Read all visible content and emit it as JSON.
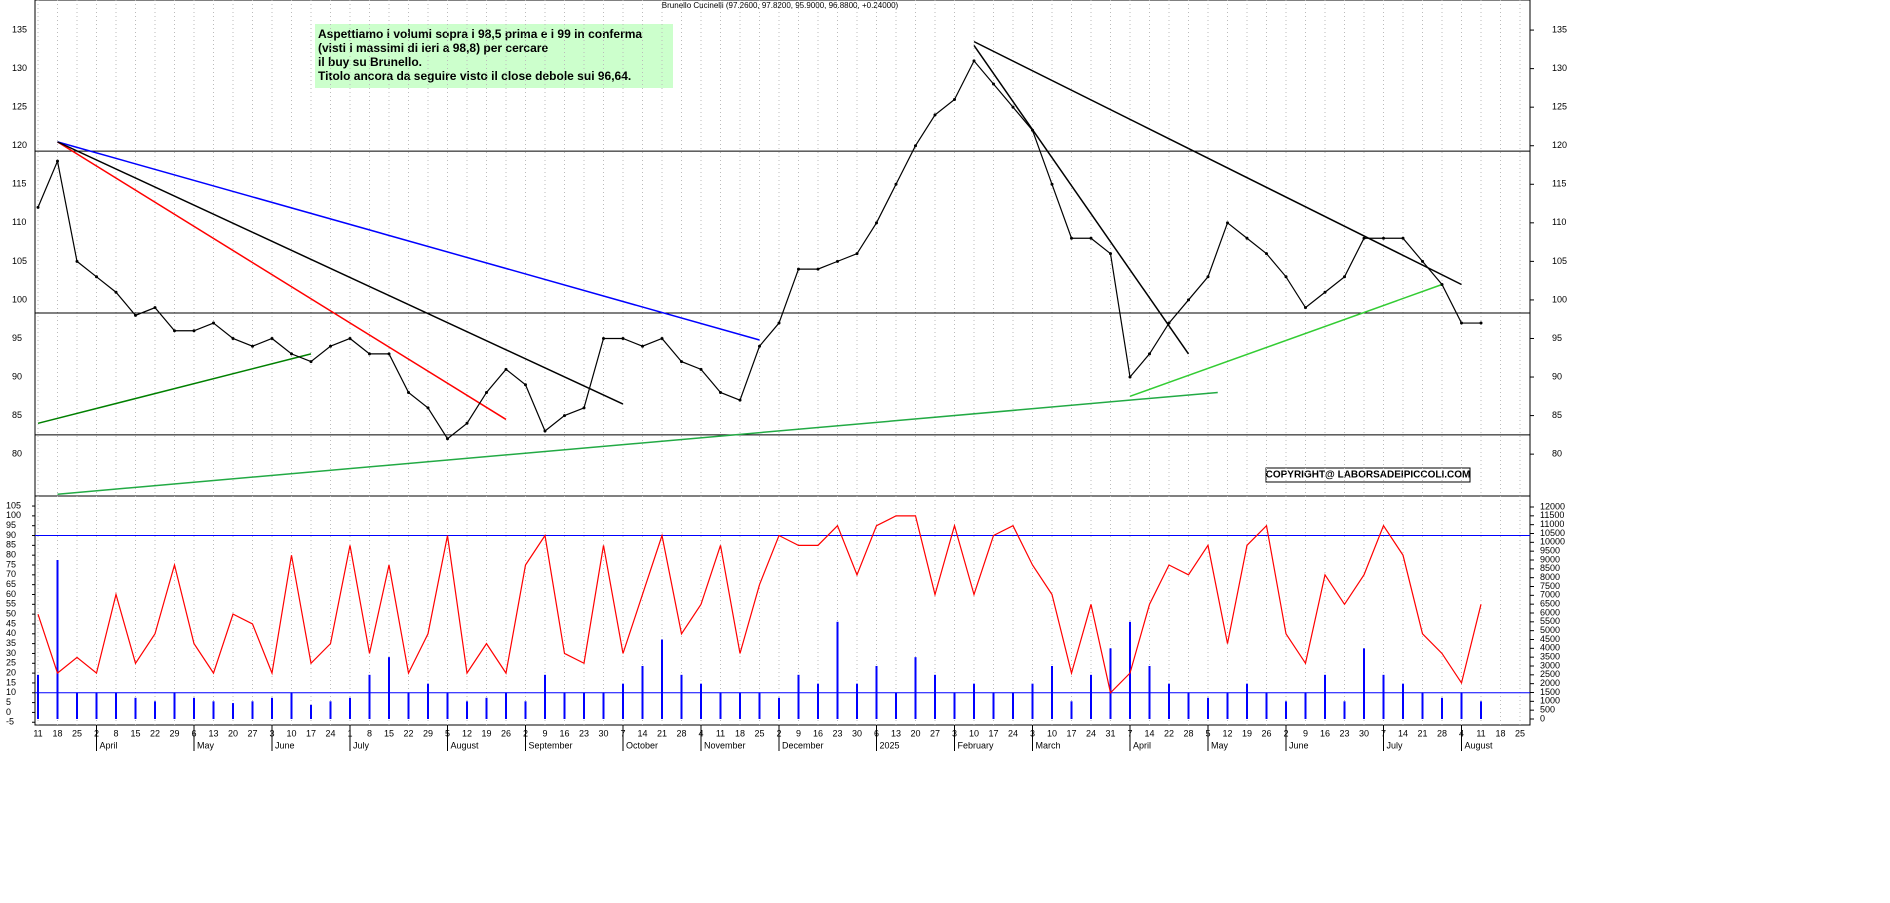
{
  "chart_data": [
    {
      "type": "line",
      "title": "Brunello Cucinelli (97.2600, 97.8200, 95.9000, 96.8800, +0.24000)",
      "note": [
        "Aspettiamo i volumi sopra i 98,5 prima e i 99 in conferma",
        "(visti i massimi di ieri a 98,8) per cercare",
        "il buy su Brunello.",
        "Titolo ancora da seguire visto il close debole sui 96,64."
      ],
      "copyright": "COPYRIGHT@ LABORSADEIPICCOLI.COM",
      "categories": [
        "11",
        "18",
        "25",
        "2",
        "8",
        "15",
        "22",
        "29",
        "6",
        "13",
        "20",
        "27",
        "3",
        "10",
        "17",
        "24",
        "1",
        "8",
        "15",
        "22",
        "29",
        "5",
        "12",
        "19",
        "26",
        "2",
        "9",
        "16",
        "23",
        "30",
        "7",
        "14",
        "21",
        "28",
        "4",
        "11",
        "18",
        "25",
        "2",
        "9",
        "16",
        "23",
        "30",
        "6",
        "13",
        "20",
        "27",
        "3",
        "10",
        "17",
        "24",
        "3",
        "10",
        "17",
        "24",
        "31",
        "7",
        "14",
        "22",
        "28",
        "5",
        "12",
        "19",
        "26",
        "2",
        "9",
        "16",
        "23",
        "30",
        "7",
        "14",
        "21",
        "28",
        "4",
        "11",
        "18",
        "25"
      ],
      "month_labels": [
        null,
        null,
        null,
        "April",
        null,
        null,
        null,
        null,
        "May",
        null,
        null,
        null,
        "June",
        null,
        null,
        null,
        "July",
        null,
        null,
        null,
        null,
        "August",
        null,
        null,
        null,
        "September",
        null,
        null,
        null,
        null,
        "October",
        null,
        null,
        null,
        "November",
        null,
        null,
        null,
        "December",
        null,
        null,
        null,
        null,
        "2025",
        null,
        null,
        null,
        "February",
        null,
        null,
        null,
        "March",
        null,
        null,
        null,
        null,
        "April",
        null,
        null,
        null,
        "May",
        null,
        null,
        null,
        "June",
        null,
        null,
        null,
        null,
        "July",
        null,
        null,
        null,
        "August",
        null,
        null,
        null
      ],
      "color": "#000000",
      "values": [
        112,
        118,
        105,
        103,
        101,
        98,
        99,
        96,
        96,
        97,
        95,
        94,
        95,
        93,
        92,
        94,
        95,
        93,
        93,
        88,
        86,
        82,
        84,
        88,
        91,
        89,
        83,
        85,
        86,
        95,
        95,
        94,
        95,
        92,
        91,
        88,
        87,
        94,
        97,
        104,
        104,
        105,
        106,
        110,
        115,
        120,
        124,
        126,
        131,
        128,
        125,
        122,
        115,
        108,
        108,
        106,
        90,
        93,
        97,
        100,
        103,
        110,
        108,
        106,
        103,
        99,
        101,
        103,
        108,
        108,
        108,
        105,
        102,
        97,
        97,
        null,
        null
      ],
      "hlines": [
        119.3,
        98.3,
        82.5
      ],
      "trendlines": [
        {
          "color": "#ff0000",
          "from": [
            1,
            120.5
          ],
          "to": [
            24,
            84.5
          ]
        },
        {
          "color": "#0000ff",
          "from": [
            1,
            120.5
          ],
          "to": [
            37,
            94.8
          ]
        },
        {
          "color": "#000000",
          "from": [
            1,
            120.5
          ],
          "to": [
            30,
            86.5
          ]
        },
        {
          "color": "#22aa44",
          "from": [
            1,
            74.8
          ],
          "to": [
            60.5,
            88
          ]
        },
        {
          "color": "#008000",
          "from": [
            0,
            84
          ],
          "to": [
            14,
            93
          ]
        },
        {
          "color": "#33cc33",
          "from": [
            56,
            87.5
          ],
          "to": [
            72,
            102
          ]
        },
        {
          "color": "#000000",
          "from": [
            48,
            133.5
          ],
          "to": [
            73,
            102
          ]
        },
        {
          "color": "#000000",
          "from": [
            48,
            133
          ],
          "to": [
            59,
            93
          ]
        }
      ],
      "ylim": [
        74.7,
        138.9
      ],
      "yticks": [
        80,
        85,
        90,
        95,
        100,
        105,
        110,
        115,
        120,
        125,
        130,
        135
      ]
    },
    {
      "type": "combo",
      "hlines": [
        90,
        10
      ],
      "series": [
        {
          "color": "#0000ff",
          "axis": "y2",
          "values": [
            2500,
            9000,
            1500,
            1500,
            1500,
            1200,
            1000,
            1500,
            1200,
            1000,
            900,
            1000,
            1200,
            1500,
            800,
            1000,
            1200,
            2500,
            3500,
            1500,
            2000,
            1500,
            1000,
            1200,
            1500,
            1000,
            2500,
            1500,
            1500,
            1500,
            2000,
            3000,
            4500,
            2500,
            2000,
            1500,
            1500,
            1500,
            1200,
            2500,
            2000,
            5500,
            2000,
            3000,
            1500,
            3500,
            2500,
            1500,
            2000,
            1500,
            1500,
            2000,
            3000,
            1000,
            2500,
            4000,
            5500,
            3000,
            2000,
            1500,
            1200,
            1500,
            2000,
            1500,
            1000,
            1500,
            2500,
            1000,
            4000,
            2500,
            2000,
            1500,
            1200,
            1500,
            1000,
            null,
            null
          ]
        },
        {
          "color": "#ff0000",
          "values": [
            50,
            20,
            28,
            20,
            60,
            25,
            40,
            75,
            35,
            20,
            50,
            45,
            20,
            80,
            25,
            35,
            85,
            30,
            75,
            20,
            40,
            90,
            20,
            35,
            20,
            75,
            90,
            30,
            25,
            85,
            30,
            60,
            90,
            40,
            55,
            85,
            30,
            65,
            90,
            85,
            85,
            95,
            70,
            95,
            100,
            100,
            60,
            95,
            60,
            90,
            95,
            75,
            60,
            20,
            55,
            10,
            20,
            55,
            75,
            70,
            85,
            35,
            85,
            95,
            40,
            25,
            70,
            55,
            70,
            95,
            80,
            40,
            30,
            15,
            55,
            null,
            null
          ]
        }
      ],
      "ylim": [
        -6.4,
        109.6
      ],
      "yticks": [
        -5,
        0,
        5,
        10,
        15,
        20,
        25,
        30,
        35,
        40,
        45,
        50,
        55,
        60,
        65,
        70,
        75,
        80,
        85,
        90,
        95,
        100,
        105
      ],
      "y2lim": [
        -340,
        12566
      ],
      "y2ticks": [
        0,
        500,
        1000,
        1500,
        2000,
        2500,
        3000,
        3500,
        4000,
        4500,
        5000,
        5500,
        6000,
        6500,
        7000,
        7500,
        8000,
        8500,
        9000,
        9500,
        10000,
        10500,
        11000,
        11500,
        12000
      ]
    }
  ]
}
